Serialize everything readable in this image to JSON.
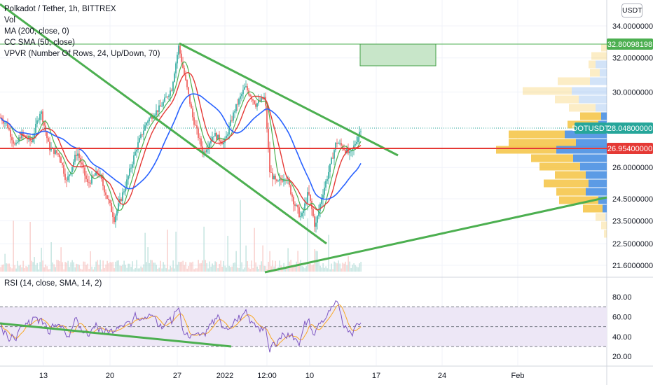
{
  "legend": {
    "symbol": "Polkadot / Tether, 1h, BITTREX",
    "vol": "Vol",
    "ma": "MA (200, close, 0)",
    "sma": "CC SMA (50, close)",
    "vpvr": "VPVR (Number Of Rows, 24, Up/Down, 70)"
  },
  "currency_button": "USDT",
  "rsi_title": "RSI (14, close, SMA, 14, 2)",
  "chart_data": [
    {
      "type": "candlestick",
      "title": "Polkadot / Tether, 1h, BITTREX",
      "y_axis_ticks": [
        "34.00000000",
        "32.00000000",
        "30.00000000",
        "26.00000000",
        "24.50000000",
        "23.50000000",
        "22.50000000",
        "21.60000000"
      ],
      "x_axis_ticks": [
        "13",
        "20",
        "27",
        "2022",
        "12:00",
        "10",
        "17",
        "24",
        "Feb"
      ],
      "price_tags": [
        {
          "label": "32.80098198",
          "color": "#4caf50"
        },
        {
          "label": "DOTUSDT",
          "value": "28.04800000",
          "color": "#26a69a"
        },
        {
          "label": "26.95400000",
          "color": "#e53935"
        }
      ],
      "scale": "log",
      "price_range": [
        21.3,
        35.0
      ],
      "series": [
        {
          "name": "MA (200, close, 0)",
          "color": "#2962ff"
        },
        {
          "name": "CC SMA (50, close)",
          "color": "#e53935"
        }
      ],
      "colors": {
        "up": "#26a69a",
        "down": "#ef5350",
        "trend": "#4caf50",
        "level": "#e53935",
        "vpvr_up": "#4a90e2",
        "vpvr_down": "#f5c342"
      }
    },
    {
      "type": "line",
      "title": "RSI (14, close, SMA, 14, 2)",
      "y_axis_ticks": [
        "80.00",
        "60.00",
        "40.00",
        "20.00"
      ],
      "ylim": [
        15,
        85
      ],
      "bands": [
        70,
        50,
        30
      ],
      "colors": {
        "rsi": "#7e57c2",
        "sma": "#f9a825",
        "band_fill": "#ede7f6"
      }
    }
  ]
}
